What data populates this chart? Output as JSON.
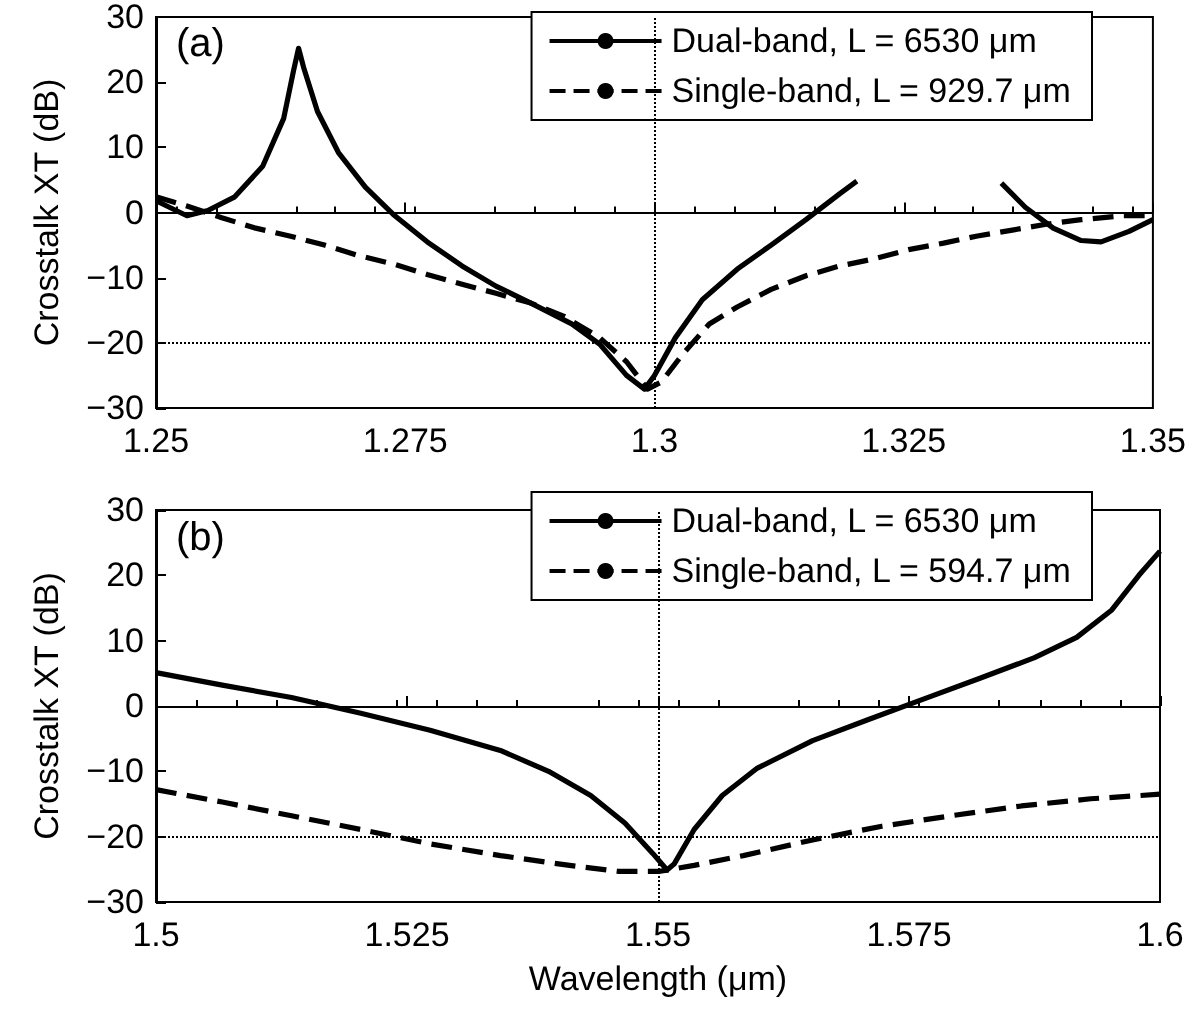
{
  "chart_data": [
    {
      "type": "line",
      "ylabel": "Crosstalk XT (dB)",
      "xlim": [
        1.25,
        1.35
      ],
      "xticks": [
        1.25,
        1.275,
        1.3,
        1.325,
        1.35
      ],
      "ylim": [
        -30,
        30
      ],
      "yticks": [
        -30,
        -20,
        -10,
        0,
        10,
        20,
        30
      ],
      "grid": false,
      "legend": "top right",
      "marker": "none",
      "annotations": [
        "(a)"
      ],
      "ref_lines": [
        {
          "axis": "y",
          "value": 0,
          "label": null,
          "color": "#000000",
          "line_style": "solid"
        },
        {
          "axis": "y",
          "value": -20,
          "label": null,
          "color": "#000000",
          "line_style": "dotted"
        },
        {
          "axis": "x",
          "value": 1.3,
          "label": null,
          "color": "#000000",
          "line_style": "dotted"
        }
      ],
      "series": [
        {
          "name": "Dual-band, L = 6530 μm",
          "color": "#000000",
          "line_style": "solid",
          "x": [
            1.25,
            1.2531,
            1.2552,
            1.2579,
            1.2607,
            1.2628,
            1.2638,
            1.2643,
            1.2648,
            1.2662,
            1.2683,
            1.271,
            1.2738,
            1.2772,
            1.2807,
            1.2841,
            1.2876,
            1.2917,
            1.2945,
            1.2972,
            1.299,
            1.3,
            1.3021,
            1.3048,
            1.3083,
            1.3117,
            1.3152,
            1.3186,
            1.3203,
            1.327,
            1.3348,
            1.3372,
            1.34,
            1.3428,
            1.3448,
            1.3476,
            1.35
          ],
          "values": [
            1.8,
            -0.5,
            0.3,
            2.4,
            7.1,
            14.4,
            21.8,
            25.2,
            22.3,
            15.5,
            9.2,
            3.9,
            -0.3,
            -4.5,
            -8.2,
            -11.3,
            -13.9,
            -17.1,
            -20.2,
            -25.0,
            -27.1,
            -25.0,
            -19.2,
            -13.4,
            -8.7,
            -5.0,
            -1.1,
            2.9,
            4.8,
            null,
            4.5,
            0.8,
            -2.4,
            -4.3,
            -4.5,
            -2.9,
            -1.1
          ]
        },
        {
          "name": "Single-band, L = 929.7 μm",
          "color": "#000000",
          "line_style": "dashed",
          "x": [
            1.25,
            1.2531,
            1.2566,
            1.26,
            1.2634,
            1.2669,
            1.2703,
            1.2738,
            1.2772,
            1.2807,
            1.2841,
            1.2876,
            1.291,
            1.2945,
            1.2972,
            1.2993,
            1.3007,
            1.3028,
            1.3055,
            1.3083,
            1.3117,
            1.3152,
            1.3186,
            1.3221,
            1.3255,
            1.329,
            1.3324,
            1.3359,
            1.3393,
            1.3428,
            1.3469,
            1.35
          ],
          "values": [
            2.4,
            1.0,
            -0.8,
            -2.4,
            -3.6,
            -5.0,
            -6.6,
            -7.9,
            -9.5,
            -11.0,
            -12.4,
            -13.9,
            -16.0,
            -19.2,
            -22.9,
            -27.1,
            -26.0,
            -21.8,
            -17.1,
            -14.5,
            -11.8,
            -9.7,
            -8.2,
            -7.1,
            -5.7,
            -4.7,
            -3.6,
            -2.7,
            -1.8,
            -1.1,
            -0.5,
            -0.5
          ]
        }
      ]
    },
    {
      "type": "line",
      "ylabel": "Crosstalk XT (dB)",
      "xlabel": "Wavelength (μm)",
      "xlim": [
        1.5,
        1.6
      ],
      "xticks": [
        1.5,
        1.525,
        1.55,
        1.575,
        1.6
      ],
      "ylim": [
        -30,
        30
      ],
      "yticks": [
        -30,
        -20,
        -10,
        0,
        10,
        20,
        30
      ],
      "grid": false,
      "legend": "top right",
      "marker": "none",
      "annotations": [
        "(b)"
      ],
      "ref_lines": [
        {
          "axis": "y",
          "value": 0,
          "label": null,
          "color": "#000000",
          "line_style": "solid"
        },
        {
          "axis": "y",
          "value": -20,
          "label": null,
          "color": "#000000",
          "line_style": "dotted"
        },
        {
          "axis": "x",
          "value": 1.55,
          "label": null,
          "color": "#000000",
          "line_style": "dotted"
        }
      ],
      "series": [
        {
          "name": "Dual-band, L = 6530 μm",
          "color": "#000000",
          "line_style": "solid",
          "x": [
            1.5,
            1.5066,
            1.5135,
            1.5204,
            1.5273,
            1.5343,
            1.5391,
            1.5433,
            1.5467,
            1.5495,
            1.5509,
            1.5516,
            1.5536,
            1.5564,
            1.5599,
            1.5654,
            1.5709,
            1.5765,
            1.582,
            1.5875,
            1.5917,
            1.5952,
            1.5979,
            1.6
          ],
          "values": [
            5.1,
            3.2,
            1.3,
            -1.1,
            -3.7,
            -6.8,
            -10.0,
            -13.7,
            -17.9,
            -22.6,
            -25.1,
            -24.2,
            -18.9,
            -13.7,
            -9.5,
            -5.3,
            -2.1,
            1.1,
            4.2,
            7.4,
            10.5,
            14.7,
            20.0,
            23.7
          ]
        },
        {
          "name": "Single-band, L = 594.7 μm",
          "color": "#000000",
          "line_style": "dashed",
          "x": [
            1.5,
            1.5066,
            1.5135,
            1.5204,
            1.5273,
            1.5343,
            1.5412,
            1.546,
            1.5502,
            1.5536,
            1.5585,
            1.5654,
            1.5723,
            1.5792,
            1.5862,
            1.5931,
            1.6
          ],
          "values": [
            -12.8,
            -14.7,
            -16.8,
            -18.9,
            -21.1,
            -22.9,
            -24.4,
            -25.3,
            -25.3,
            -24.4,
            -22.9,
            -20.5,
            -18.4,
            -16.8,
            -15.3,
            -14.2,
            -13.5
          ]
        }
      ]
    }
  ]
}
